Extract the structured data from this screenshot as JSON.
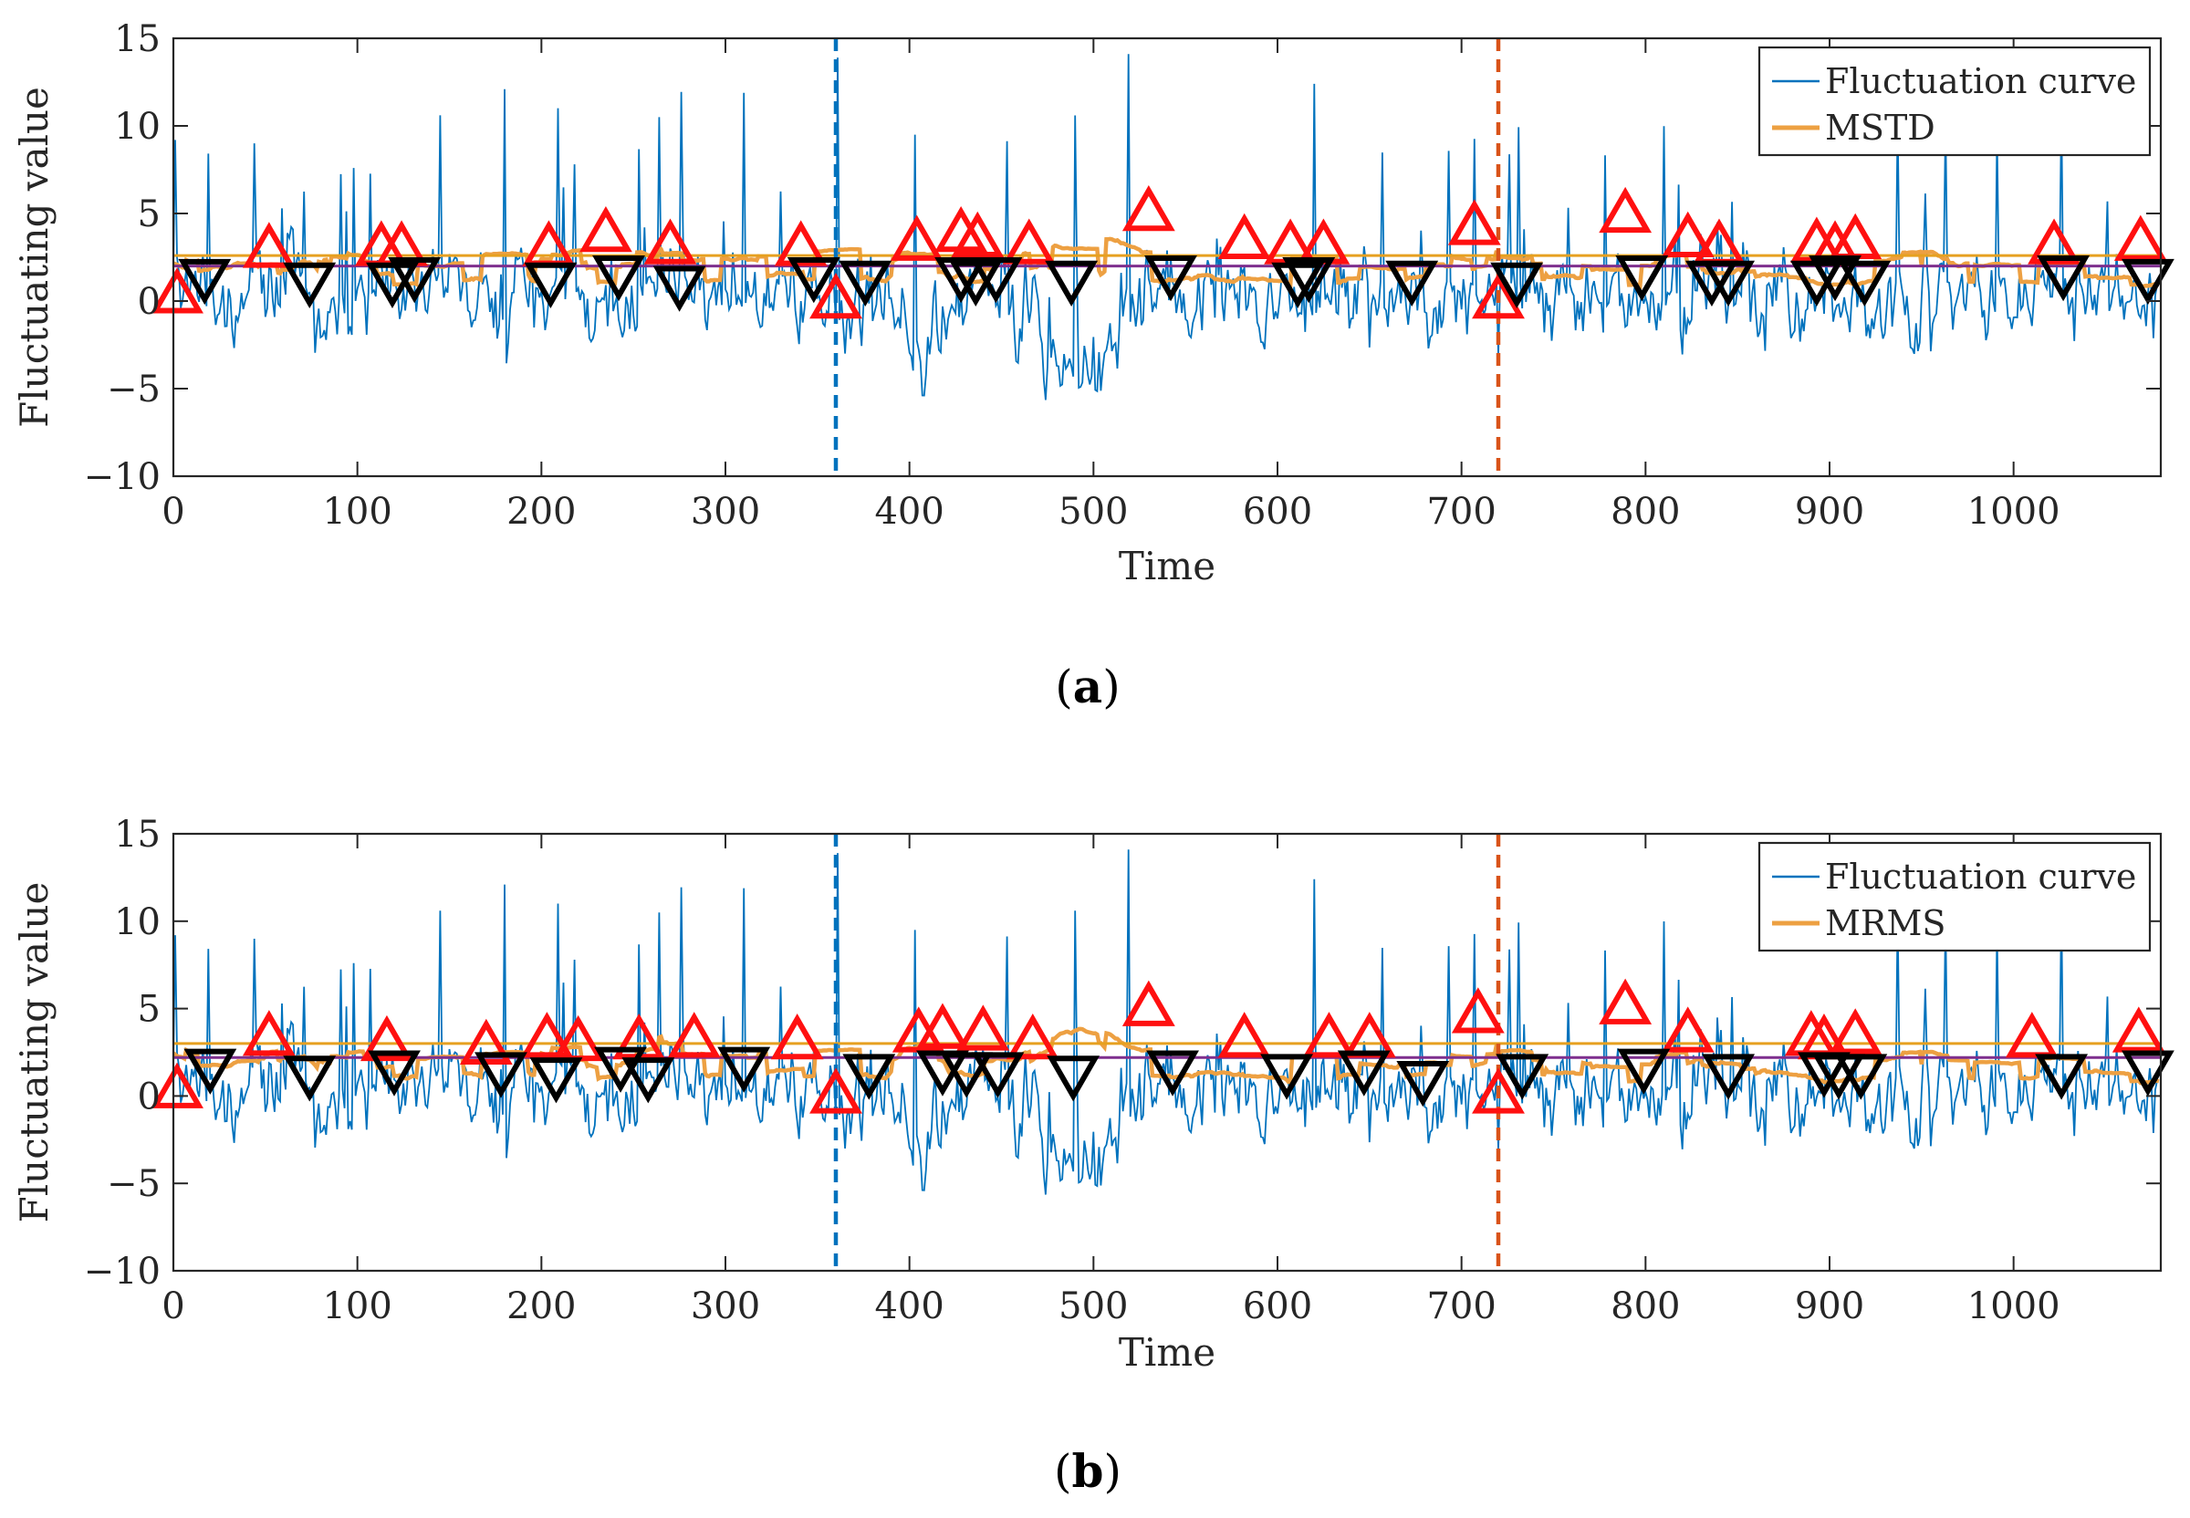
{
  "colors": {
    "fluctuation": "#0072BD",
    "moving_stat": "#EDA042",
    "threshold_upper": "#E6A020",
    "threshold_lower": "#7E2F8E",
    "peak_marker": "#FF1010",
    "valley_marker": "#000000",
    "line_360": "#0072BD",
    "line_720": "#D95319"
  },
  "chart_data": [
    {
      "id": "a",
      "type": "line",
      "caption_open": "(",
      "caption_letter": "a",
      "caption_close": ")",
      "xlabel": "Time",
      "ylabel": "Fluctuating value",
      "xlim": [
        0,
        1080
      ],
      "ylim": [
        -10,
        15
      ],
      "xticks": [
        0,
        100,
        200,
        300,
        400,
        500,
        600,
        700,
        800,
        900,
        1000
      ],
      "yticks": [
        15,
        10,
        5,
        0,
        -5,
        -10
      ],
      "ytick_labels": [
        "15",
        "10",
        "5",
        "0",
        "−5",
        "−10"
      ],
      "legend": [
        "Fluctuation curve",
        "MSTD"
      ],
      "vertical_lines": [
        360,
        720
      ],
      "threshold_upper": 2.6,
      "threshold_lower": 2.0,
      "series_seed": 7,
      "peaks": [
        [
          2,
          0.3
        ],
        [
          52,
          2.9
        ],
        [
          113,
          3.0
        ],
        [
          124,
          3.0
        ],
        [
          204,
          3.0
        ],
        [
          235,
          3.8
        ],
        [
          270,
          3.1
        ],
        [
          341,
          3.0
        ],
        [
          360,
          0.0
        ],
        [
          404,
          3.3
        ],
        [
          428,
          3.8
        ],
        [
          437,
          3.5
        ],
        [
          465,
          3.1
        ],
        [
          530,
          5.0
        ],
        [
          582,
          3.4
        ],
        [
          607,
          3.1
        ],
        [
          625,
          3.1
        ],
        [
          707,
          4.2
        ],
        [
          720,
          0.0
        ],
        [
          789,
          4.9
        ],
        [
          823,
          3.5
        ],
        [
          840,
          3.1
        ],
        [
          893,
          3.2
        ],
        [
          903,
          3.0
        ],
        [
          914,
          3.4
        ],
        [
          1022,
          3.1
        ],
        [
          1069,
          3.3
        ]
      ],
      "valleys": [
        [
          17,
          1.4
        ],
        [
          74,
          1.2
        ],
        [
          119,
          1.2
        ],
        [
          131,
          1.5
        ],
        [
          205,
          1.2
        ],
        [
          242,
          1.6
        ],
        [
          275,
          1.0
        ],
        [
          348,
          1.5
        ],
        [
          376,
          1.3
        ],
        [
          428,
          1.5
        ],
        [
          436,
          1.3
        ],
        [
          447,
          1.5
        ],
        [
          488,
          1.3
        ],
        [
          542,
          1.6
        ],
        [
          611,
          1.2
        ],
        [
          617,
          1.5
        ],
        [
          673,
          1.3
        ],
        [
          730,
          1.2
        ],
        [
          798,
          1.6
        ],
        [
          836,
          1.3
        ],
        [
          845,
          1.3
        ],
        [
          893,
          1.3
        ],
        [
          903,
          1.6
        ],
        [
          919,
          1.3
        ],
        [
          1027,
          1.6
        ],
        [
          1073,
          1.4
        ]
      ]
    },
    {
      "id": "b",
      "type": "line",
      "caption_open": "(",
      "caption_letter": "b",
      "caption_close": ")",
      "xlabel": "Time",
      "ylabel": "Fluctuating value",
      "xlim": [
        0,
        1080
      ],
      "ylim": [
        -10,
        15
      ],
      "xticks": [
        0,
        100,
        200,
        300,
        400,
        500,
        600,
        700,
        800,
        900,
        1000
      ],
      "yticks": [
        15,
        10,
        5,
        0,
        -5,
        -10
      ],
      "ytick_labels": [
        "15",
        "10",
        "5",
        "0",
        "−5",
        "−10"
      ],
      "legend": [
        "Fluctuation curve",
        "MRMS"
      ],
      "vertical_lines": [
        360,
        720
      ],
      "threshold_upper": 3.0,
      "threshold_lower": 2.2,
      "series_seed": 7,
      "peaks": [
        [
          2,
          0.3
        ],
        [
          52,
          3.3
        ],
        [
          116,
          3.0
        ],
        [
          170,
          2.8
        ],
        [
          203,
          3.2
        ],
        [
          220,
          3.0
        ],
        [
          253,
          3.1
        ],
        [
          283,
          3.2
        ],
        [
          339,
          3.1
        ],
        [
          360,
          0.0
        ],
        [
          405,
          3.5
        ],
        [
          418,
          3.7
        ],
        [
          440,
          3.6
        ],
        [
          467,
          3.1
        ],
        [
          530,
          5.0
        ],
        [
          582,
          3.2
        ],
        [
          628,
          3.2
        ],
        [
          650,
          3.2
        ],
        [
          709,
          4.6
        ],
        [
          720,
          0.0
        ],
        [
          789,
          5.1
        ],
        [
          823,
          3.5
        ],
        [
          890,
          3.3
        ],
        [
          897,
          3.1
        ],
        [
          914,
          3.4
        ],
        [
          1010,
          3.2
        ],
        [
          1068,
          3.5
        ]
      ],
      "valleys": [
        [
          20,
          1.7
        ],
        [
          74,
          1.3
        ],
        [
          120,
          1.6
        ],
        [
          178,
          1.5
        ],
        [
          208,
          1.2
        ],
        [
          243,
          1.8
        ],
        [
          258,
          1.2
        ],
        [
          310,
          1.8
        ],
        [
          378,
          1.4
        ],
        [
          418,
          1.6
        ],
        [
          431,
          1.5
        ],
        [
          448,
          1.5
        ],
        [
          489,
          1.3
        ],
        [
          543,
          1.6
        ],
        [
          605,
          1.4
        ],
        [
          647,
          1.6
        ],
        [
          679,
          1.0
        ],
        [
          733,
          1.4
        ],
        [
          799,
          1.7
        ],
        [
          845,
          1.4
        ],
        [
          897,
          1.5
        ],
        [
          905,
          1.4
        ],
        [
          917,
          1.4
        ],
        [
          1026,
          1.4
        ],
        [
          1073,
          1.6
        ]
      ]
    }
  ]
}
